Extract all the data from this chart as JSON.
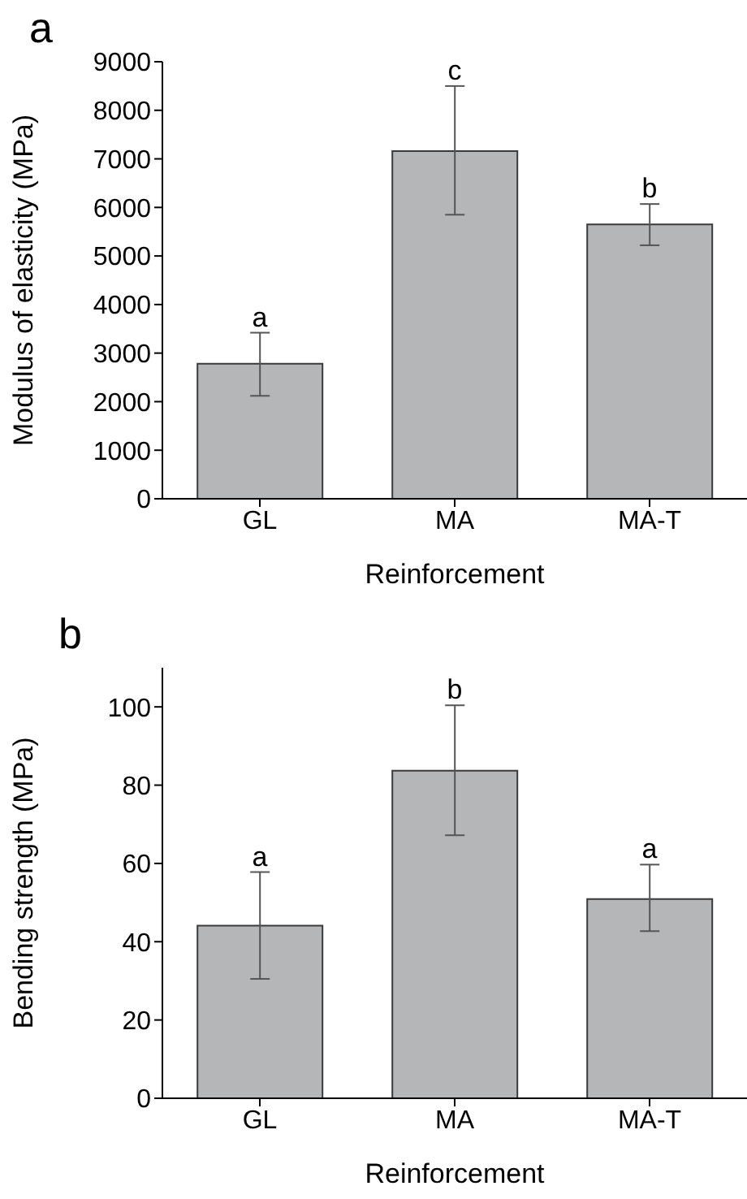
{
  "chart_data": [
    {
      "type": "bar",
      "title": "a",
      "xlabel": "Reinforcement",
      "ylabel": "Modulus of elasticity (MPa)",
      "categories": [
        "GL",
        "MA",
        "MA-T"
      ],
      "values": [
        2780,
        7160,
        5650
      ],
      "errors": [
        [
          2120,
          3420
        ],
        [
          5850,
          8500
        ],
        [
          5220,
          6070
        ]
      ],
      "color": "#b5b6b8",
      "ylim": [
        0,
        9000
      ],
      "yticks": [
        0,
        1000,
        2000,
        3000,
        4000,
        5000,
        6000,
        7000,
        8000,
        9000
      ],
      "grid": false,
      "legend": false,
      "annotations": [
        {
          "text": "a",
          "x": "GL",
          "y": 3420
        },
        {
          "text": "c",
          "x": "MA",
          "y": 8500
        },
        {
          "text": "b",
          "x": "MA-T",
          "y": 6070
        }
      ]
    },
    {
      "type": "bar",
      "title": "b",
      "xlabel": "Reinforcement",
      "ylabel": "Bending strength (MPa)",
      "categories": [
        "GL",
        "MA",
        "MA-T"
      ],
      "values": [
        44.1,
        83.7,
        50.9
      ],
      "errors": [
        [
          30.5,
          57.8
        ],
        [
          67.2,
          100.4
        ],
        [
          42.7,
          59.7
        ]
      ],
      "color": "#b5b6b8",
      "ylim": [
        0,
        110
      ],
      "yticks": [
        0,
        20,
        40,
        60,
        80,
        100
      ],
      "grid": false,
      "legend": false,
      "annotations": [
        {
          "text": "a",
          "x": "GL",
          "y": 57.8
        },
        {
          "text": "b",
          "x": "MA",
          "y": 100.4
        },
        {
          "text": "a",
          "x": "MA-T",
          "y": 59.7
        }
      ]
    }
  ]
}
